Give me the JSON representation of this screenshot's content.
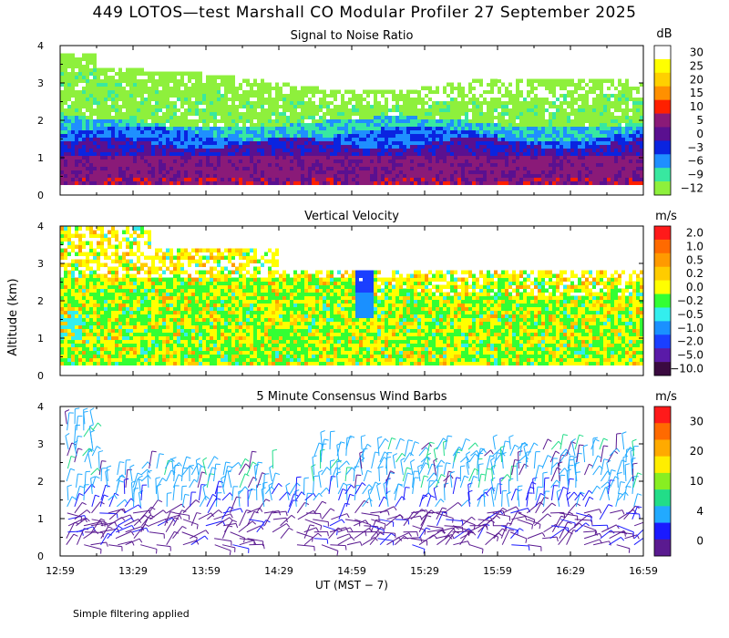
{
  "title": "449 LOTOS—test Marshall CO Modular Profiler 27 September 2025",
  "footnote": "Simple filtering applied",
  "chart_data": [
    {
      "type": "heatmap",
      "title": "Signal to Noise Ratio",
      "ylabel": "",
      "ylim": [
        0,
        4
      ],
      "yticks": [
        "0",
        "1",
        "2",
        "3",
        "4"
      ],
      "colorbar": {
        "unit": "dB",
        "labels": [
          "30",
          "25",
          "20",
          "15",
          "10",
          "5",
          "0",
          "−3",
          "−6",
          "−9",
          "−12"
        ],
        "colors": [
          "#ffffff",
          "#ffff00",
          "#ffd000",
          "#ff9000",
          "#ff2000",
          "#8a1a78",
          "#5a1090",
          "#0a24e0",
          "#1f8fff",
          "#38e8a0",
          "#8ef03c"
        ]
      }
    },
    {
      "type": "heatmap",
      "title": "Vertical Velocity",
      "ylabel": "Altitude (km)",
      "ylim": [
        0,
        4
      ],
      "yticks": [
        "0",
        "1",
        "2",
        "3",
        "4"
      ],
      "colorbar": {
        "unit": "m/s",
        "labels": [
          "2.0",
          "1.0",
          "0.5",
          "0.2",
          "0.0",
          "−0.2",
          "−0.5",
          "−1.0",
          "−2.0",
          "−5.0",
          "−10.0"
        ],
        "colors": [
          "#ff1a1a",
          "#ff6a00",
          "#ff9a00",
          "#ffcc00",
          "#ffff00",
          "#33ff33",
          "#33eeee",
          "#1a90ff",
          "#1a3fff",
          "#5a1aa8",
          "#3a0a40"
        ]
      }
    },
    {
      "type": "scatter",
      "title": "5 Minute Consensus Wind Barbs",
      "ylabel": "",
      "ylim": [
        0,
        4
      ],
      "yticks": [
        "0",
        "1",
        "2",
        "3",
        "4"
      ],
      "xlabel": "UT  (MST − 7)",
      "xticks": [
        "12:59",
        "13:29",
        "13:59",
        "14:29",
        "14:59",
        "15:29",
        "15:59",
        "16:29",
        "16:59"
      ],
      "colorbar": {
        "unit": "m/s",
        "labels": [
          "30",
          "20",
          "10",
          "4",
          "0"
        ],
        "colors": [
          "#ff1a1a",
          "#ff6a00",
          "#ffaa00",
          "#ffee00",
          "#88ee22",
          "#22dd88",
          "#22aaff",
          "#1a1aff",
          "#5a1a90"
        ]
      }
    }
  ]
}
